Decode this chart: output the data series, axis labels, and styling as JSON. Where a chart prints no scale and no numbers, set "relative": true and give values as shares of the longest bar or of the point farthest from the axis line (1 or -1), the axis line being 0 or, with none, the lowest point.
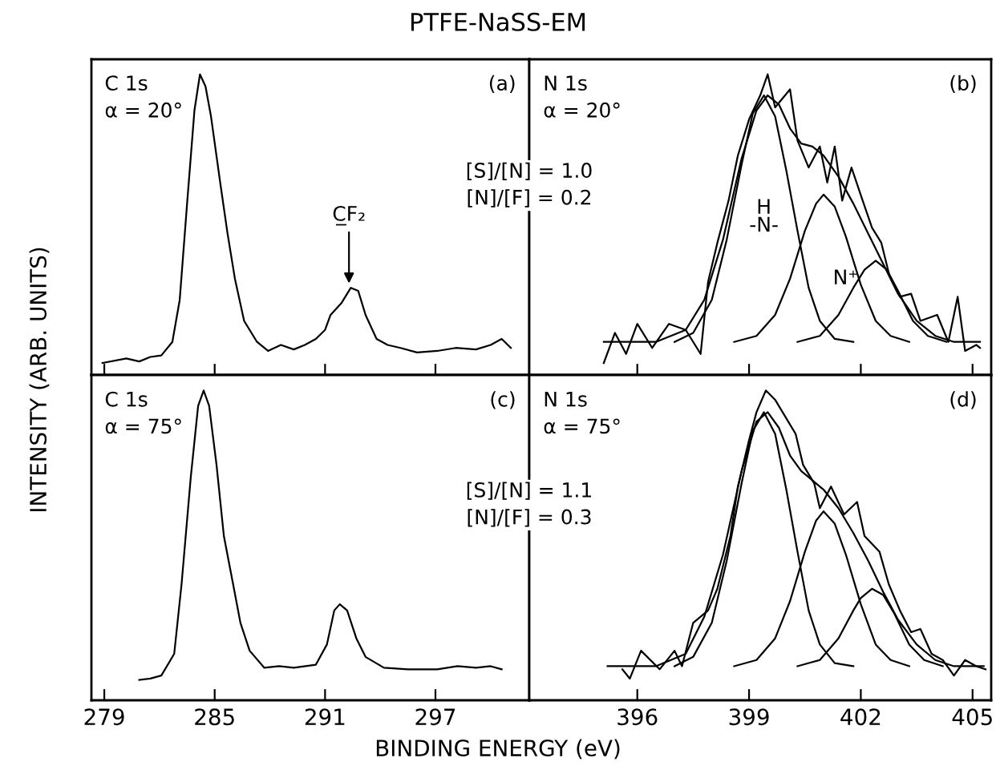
{
  "chart_data": [
    {
      "type": "line",
      "title": "PTFE-NaSS-EM",
      "ylabel": "INTENSITY (ARB. UNITS)",
      "relative": true,
      "xlim": [
        278.3,
        302.1
      ],
      "xticks": [
        279,
        285,
        291,
        297
      ],
      "tick_labels": false,
      "marker": "none",
      "line_style": "solid",
      "annotations": [
        "C 1s\nα = 20°",
        "(a)",
        {
          "text": "C̲F₂",
          "x": 292.3,
          "y": 0.29
        }
      ],
      "series": [
        {
          "color": "#000000",
          "x": [
            278.9,
            280.2,
            280.9,
            281.5,
            282.1,
            282.7,
            283.1,
            283.5,
            283.9,
            284.2,
            284.5,
            284.8,
            285.3,
            285.7,
            286.1,
            286.6,
            287.3,
            287.9,
            288.6,
            289.3,
            289.9,
            290.5,
            291.0,
            291.3,
            291.9,
            292.4,
            292.8,
            293.2,
            293.8,
            294.4,
            295.1,
            296.0,
            297.1,
            298.1,
            299.2,
            300.0,
            300.6,
            301.1
          ],
          "values": [
            0.04,
            0.055,
            0.045,
            0.06,
            0.065,
            0.11,
            0.25,
            0.57,
            0.88,
            1.0,
            0.96,
            0.86,
            0.64,
            0.47,
            0.32,
            0.18,
            0.11,
            0.08,
            0.1,
            0.085,
            0.1,
            0.12,
            0.15,
            0.2,
            0.24,
            0.29,
            0.28,
            0.2,
            0.12,
            0.1,
            0.09,
            0.075,
            0.08,
            0.09,
            0.085,
            0.1,
            0.12,
            0.09
          ]
        }
      ]
    },
    {
      "type": "line",
      "relative": true,
      "xlim": [
        393.1,
        405.5
      ],
      "xticks": [
        396,
        399,
        402,
        405
      ],
      "tick_labels": false,
      "marker": "none",
      "line_style": "solid",
      "annotations": [
        "N 1s\nα = 20°",
        "(b)",
        "[S]/[N] = 1.0\n[N]/[F] = 0.2",
        "H\n-N-",
        "N⁺"
      ],
      "series": [
        {
          "color": "#000000",
          "x": [
            395.1,
            395.4,
            395.7,
            396.0,
            396.4,
            396.85,
            397.3,
            397.7,
            397.9,
            398.15,
            398.45,
            398.7,
            399.0,
            399.3,
            399.5,
            399.7,
            400.1,
            400.3,
            400.6,
            400.9,
            401.1,
            401.3,
            401.5,
            401.75,
            402.05,
            402.3,
            402.55,
            402.77,
            403.05,
            403.35,
            403.6,
            404.05,
            404.35,
            404.6,
            404.8,
            405.1,
            405.2
          ],
          "values": [
            0.04,
            0.14,
            0.07,
            0.17,
            0.09,
            0.17,
            0.15,
            0.07,
            0.31,
            0.44,
            0.58,
            0.73,
            0.85,
            0.93,
            1.0,
            0.89,
            0.95,
            0.78,
            0.69,
            0.76,
            0.64,
            0.76,
            0.58,
            0.69,
            0.58,
            0.49,
            0.44,
            0.33,
            0.26,
            0.27,
            0.18,
            0.2,
            0.11,
            0.26,
            0.08,
            0.1,
            0.09
          ]
        },
        {
          "color": "#000000",
          "x": [
            395.1,
            396.5,
            397.3,
            397.8,
            398.3,
            398.8,
            399.2,
            399.5,
            399.8,
            400.1,
            400.4,
            400.7,
            401.0,
            401.4,
            401.8,
            402.2,
            402.6,
            403.0,
            403.5,
            404.0,
            404.5,
            405.2
          ],
          "values": [
            0.11,
            0.11,
            0.15,
            0.25,
            0.45,
            0.72,
            0.88,
            0.93,
            0.9,
            0.82,
            0.77,
            0.76,
            0.73,
            0.66,
            0.57,
            0.47,
            0.37,
            0.27,
            0.18,
            0.13,
            0.11,
            0.11
          ]
        },
        {
          "color": "#000000",
          "x": [
            397.0,
            397.5,
            398.0,
            398.4,
            398.8,
            399.1,
            399.4,
            399.7,
            400.0,
            400.3,
            400.6,
            400.9,
            401.3,
            401.8
          ],
          "values": [
            0.11,
            0.14,
            0.25,
            0.45,
            0.7,
            0.87,
            0.93,
            0.86,
            0.68,
            0.48,
            0.29,
            0.18,
            0.12,
            0.11
          ]
        },
        {
          "color": "#000000",
          "x": [
            398.6,
            399.2,
            399.7,
            400.1,
            400.5,
            400.8,
            401.0,
            401.3,
            401.6,
            402.0,
            402.4,
            402.8,
            403.3
          ],
          "values": [
            0.11,
            0.13,
            0.2,
            0.32,
            0.48,
            0.57,
            0.6,
            0.56,
            0.46,
            0.3,
            0.18,
            0.13,
            0.11
          ]
        },
        {
          "color": "#000000",
          "x": [
            400.3,
            400.9,
            401.4,
            401.8,
            402.1,
            402.4,
            402.7,
            403.0,
            403.4,
            403.8,
            404.3
          ],
          "values": [
            0.11,
            0.13,
            0.2,
            0.29,
            0.35,
            0.38,
            0.35,
            0.28,
            0.18,
            0.13,
            0.11
          ]
        }
      ]
    },
    {
      "type": "line",
      "xlabel": "BINDING ENERGY (eV)",
      "relative": true,
      "xlim": [
        278.3,
        302.1
      ],
      "xticks": [
        279,
        285,
        291,
        297
      ],
      "tick_labels": "x",
      "marker": "none",
      "line_style": "solid",
      "annotations": [
        "C 1s\nα = 75°",
        "(c)"
      ],
      "series": [
        {
          "color": "#000000",
          "x": [
            280.9,
            281.5,
            282.1,
            282.8,
            283.2,
            283.7,
            284.1,
            284.4,
            284.7,
            285.1,
            285.5,
            286.0,
            286.4,
            286.9,
            287.7,
            288.5,
            289.3,
            290.5,
            291.1,
            291.5,
            291.8,
            292.2,
            292.7,
            293.2,
            294.2,
            295.5,
            297.1,
            298.2,
            299.2,
            300.0,
            300.6
          ],
          "values": [
            0.066,
            0.07,
            0.08,
            0.15,
            0.375,
            0.72,
            0.95,
            1.0,
            0.95,
            0.76,
            0.53,
            0.375,
            0.25,
            0.16,
            0.105,
            0.11,
            0.105,
            0.115,
            0.18,
            0.29,
            0.31,
            0.29,
            0.2,
            0.14,
            0.105,
            0.1,
            0.1,
            0.11,
            0.105,
            0.11,
            0.1
          ]
        }
      ]
    },
    {
      "type": "line",
      "relative": true,
      "xlim": [
        393.1,
        405.5
      ],
      "xticks": [
        396,
        399,
        402,
        405
      ],
      "tick_labels": "x",
      "marker": "none",
      "line_style": "solid",
      "annotations": [
        "N 1s\nα = 75°",
        "(d)",
        "[S]/[N] = 1.1\n[N]/[F] = 0.3"
      ],
      "series": [
        {
          "color": "#000000",
          "x": [
            395.6,
            395.8,
            396.1,
            396.6,
            397.0,
            397.2,
            397.5,
            397.9,
            398.15,
            398.5,
            398.7,
            399.0,
            399.2,
            399.45,
            399.7,
            400.0,
            400.25,
            400.45,
            400.75,
            400.9,
            401.2,
            401.55,
            401.9,
            402.1,
            402.5,
            402.75,
            403.05,
            403.35,
            403.6,
            403.9,
            404.2,
            404.5,
            404.8,
            405.1,
            405.35
          ],
          "values": [
            0.1,
            0.07,
            0.16,
            0.1,
            0.16,
            0.11,
            0.25,
            0.29,
            0.36,
            0.53,
            0.69,
            0.84,
            0.93,
            1.0,
            0.97,
            0.91,
            0.86,
            0.76,
            0.7,
            0.62,
            0.69,
            0.6,
            0.64,
            0.53,
            0.48,
            0.375,
            0.29,
            0.22,
            0.23,
            0.15,
            0.13,
            0.08,
            0.13,
            0.11,
            0.1
          ]
        },
        {
          "color": "#000000",
          "x": [
            395.2,
            396.5,
            397.3,
            397.8,
            398.3,
            398.8,
            399.2,
            399.5,
            399.8,
            400.1,
            400.4,
            400.7,
            401.0,
            401.4,
            401.8,
            402.2,
            402.6,
            403.0,
            403.5,
            404.0,
            404.5,
            405.3
          ],
          "values": [
            0.11,
            0.11,
            0.15,
            0.27,
            0.47,
            0.74,
            0.9,
            0.93,
            0.88,
            0.79,
            0.74,
            0.71,
            0.68,
            0.62,
            0.54,
            0.45,
            0.35,
            0.26,
            0.18,
            0.13,
            0.11,
            0.11
          ]
        },
        {
          "color": "#000000",
          "x": [
            397.0,
            397.5,
            398.0,
            398.4,
            398.8,
            399.1,
            399.4,
            399.7,
            400.0,
            400.3,
            400.6,
            400.9,
            401.3,
            401.8
          ],
          "values": [
            0.11,
            0.14,
            0.25,
            0.45,
            0.7,
            0.87,
            0.93,
            0.86,
            0.68,
            0.48,
            0.29,
            0.18,
            0.12,
            0.11
          ]
        },
        {
          "color": "#000000",
          "x": [
            398.6,
            399.2,
            399.7,
            400.1,
            400.5,
            400.8,
            401.0,
            401.3,
            401.6,
            402.0,
            402.4,
            402.8,
            403.3
          ],
          "values": [
            0.11,
            0.13,
            0.2,
            0.32,
            0.48,
            0.58,
            0.61,
            0.57,
            0.47,
            0.31,
            0.18,
            0.13,
            0.11
          ]
        },
        {
          "color": "#000000",
          "x": [
            400.3,
            400.9,
            401.4,
            401.8,
            402.0,
            402.3,
            402.6,
            402.9,
            403.3,
            403.7,
            404.2
          ],
          "values": [
            0.11,
            0.13,
            0.2,
            0.29,
            0.33,
            0.36,
            0.34,
            0.28,
            0.18,
            0.13,
            0.11
          ]
        }
      ]
    }
  ]
}
